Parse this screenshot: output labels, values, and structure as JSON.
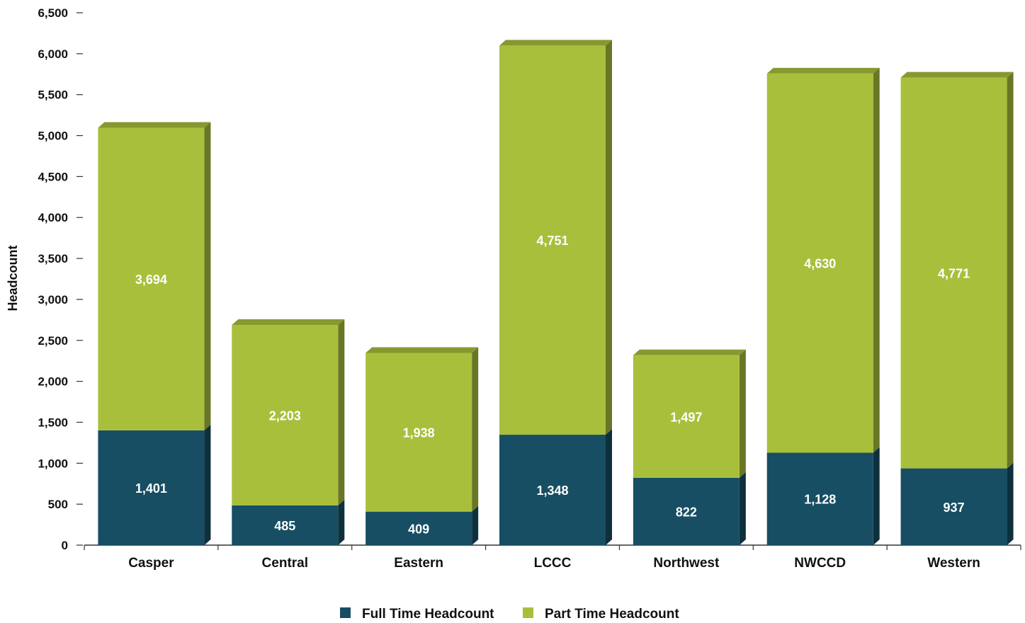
{
  "chart_data": {
    "type": "bar",
    "stacked": true,
    "categories": [
      "Casper",
      "Central",
      "Eastern",
      "LCCC",
      "Northwest",
      "NWCCD",
      "Western"
    ],
    "series": [
      {
        "name": "Full Time Headcount",
        "color": "#174e63",
        "values": [
          1401,
          485,
          409,
          1348,
          822,
          1128,
          937
        ]
      },
      {
        "name": "Part Time Headcount",
        "color": "#a8bf3c",
        "values": [
          3694,
          2203,
          1938,
          4751,
          1497,
          4630,
          4771
        ]
      }
    ],
    "value_labels": {
      "Full Time Headcount": [
        "1,401",
        "485",
        "409",
        "1,348",
        "822",
        "1,128",
        "937"
      ],
      "Part Time Headcount": [
        "3,694",
        "2,203",
        "1,938",
        "4,751",
        "1,497",
        "4,630",
        "4,771"
      ]
    },
    "title": "",
    "xlabel": "",
    "ylabel": "Headcount",
    "ylim": [
      0,
      6500
    ],
    "yticks": [
      0,
      500,
      1000,
      1500,
      2000,
      2500,
      3000,
      3500,
      4000,
      4500,
      5000,
      5500,
      6000,
      6500
    ],
    "ytick_labels": [
      "0",
      "500",
      "1,000",
      "1,500",
      "2,000",
      "2,500",
      "3,000",
      "3,500",
      "4,000",
      "4,500",
      "5,000",
      "5,500",
      "6,000",
      "6,500"
    ],
    "grid": false,
    "legend_position": "bottom-center",
    "style": "3d-bars"
  }
}
